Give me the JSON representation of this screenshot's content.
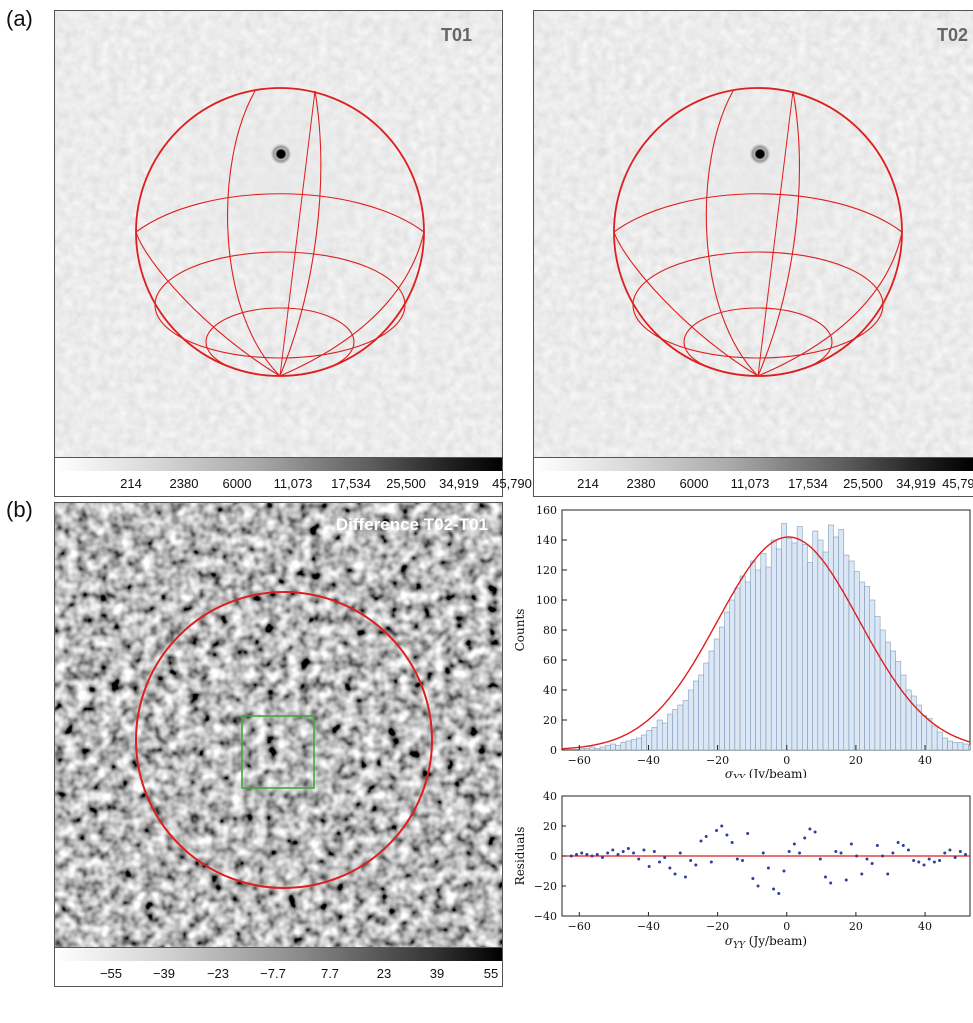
{
  "panel_labels": {
    "a": "(a)",
    "b": "(b)"
  },
  "maps": {
    "t01": {
      "title": "T01"
    },
    "t02": {
      "title": "T02"
    },
    "diff": {
      "title": "Difference T02-T01"
    }
  },
  "colorbars": {
    "intensity": [
      "214",
      "2380",
      "6000",
      "11,073",
      "17,534",
      "25,500",
      "34,919",
      "45,790"
    ],
    "difference": [
      "−55",
      "−39",
      "−23",
      "−7.7",
      "7.7",
      "23",
      "39",
      "55"
    ]
  },
  "colors": {
    "overlay_red": "#dd1f1f",
    "region_green": "#3faa3a",
    "hist_fill": "#dbe7f5",
    "hist_edge": "#6f8fb0",
    "residual_points": "#2c3f9e"
  },
  "chart_data": [
    {
      "type": "bar",
      "title": "",
      "xlabel": "σ_YY (Jy/beam)",
      "ylabel": "Counts",
      "xlim": [
        -65,
        53
      ],
      "ylim": [
        0,
        160
      ],
      "xticks": [
        -60,
        -40,
        -20,
        0,
        20,
        40
      ],
      "yticks": [
        0,
        20,
        40,
        60,
        80,
        100,
        120,
        140,
        160
      ],
      "bin_start": -63,
      "bin_width": 1.5,
      "values": [
        0,
        0,
        1,
        1,
        2,
        1,
        2,
        3,
        4,
        3,
        5,
        6,
        7,
        8,
        10,
        13,
        15,
        20,
        18,
        24,
        27,
        30,
        33,
        40,
        46,
        50,
        58,
        66,
        74,
        82,
        92,
        100,
        108,
        116,
        112,
        126,
        120,
        131,
        122,
        140,
        134,
        151,
        141,
        138,
        149,
        137,
        125,
        146,
        140,
        132,
        150,
        142,
        147,
        130,
        126,
        119,
        112,
        109,
        100,
        89,
        80,
        72,
        66,
        59,
        50,
        40,
        36,
        30,
        23,
        21,
        16,
        12,
        8,
        6,
        5,
        5,
        4,
        3,
        4
      ],
      "fit": {
        "type": "gaussian",
        "amplitude": 142,
        "mean": 0.5,
        "sigma": 20.5,
        "color": "#dd1f1f"
      },
      "grid": false
    },
    {
      "type": "scatter",
      "title": "",
      "xlabel": "σ_YY (Jy/beam)",
      "ylabel": "Residuals",
      "xlim": [
        -65,
        53
      ],
      "ylim": [
        -40,
        40
      ],
      "xticks": [
        -60,
        -40,
        -20,
        0,
        20,
        40
      ],
      "yticks": [
        -40,
        -20,
        0,
        20,
        40
      ],
      "x": [
        -62.3,
        -60.8,
        -59.3,
        -57.8,
        -56.3,
        -54.8,
        -53.3,
        -51.8,
        -50.3,
        -48.8,
        -47.3,
        -45.8,
        -44.3,
        -42.8,
        -41.3,
        -39.8,
        -38.3,
        -36.8,
        -35.3,
        -33.8,
        -32.3,
        -30.8,
        -29.3,
        -27.8,
        -26.3,
        -24.8,
        -23.3,
        -21.8,
        -20.3,
        -18.8,
        -17.3,
        -15.8,
        -14.3,
        -12.8,
        -11.3,
        -9.8,
        -8.3,
        -6.8,
        -5.3,
        -3.8,
        -2.3,
        -0.8,
        0.7,
        2.2,
        3.7,
        5.2,
        6.7,
        8.2,
        9.7,
        11.2,
        12.7,
        14.2,
        15.7,
        17.2,
        18.7,
        20.2,
        21.7,
        23.2,
        24.7,
        26.2,
        27.7,
        29.2,
        30.7,
        32.2,
        33.7,
        35.2,
        36.7,
        38.2,
        39.7,
        41.2,
        42.7,
        44.2,
        45.7,
        47.2,
        48.7,
        50.2,
        51.7
      ],
      "y": [
        0,
        1,
        2,
        1,
        0,
        1,
        -1,
        2,
        4,
        1,
        3,
        5,
        2,
        -2,
        4,
        -7,
        3,
        -4,
        -1,
        -8,
        -12,
        2,
        -14,
        -3,
        -6,
        10,
        13,
        -4,
        17,
        20,
        14,
        9,
        -2,
        -3,
        15,
        -15,
        -20,
        2,
        -8,
        -22,
        -25,
        -10,
        3,
        8,
        2,
        12,
        18,
        16,
        -2,
        -14,
        -18,
        3,
        2,
        -16,
        8,
        0,
        -12,
        -2,
        -5,
        7,
        0,
        -12,
        2,
        9,
        7,
        4,
        -3,
        -4,
        -6,
        -2,
        -4,
        -3,
        2,
        4,
        -1,
        3,
        1
      ],
      "reference_line": 0,
      "grid": false
    }
  ]
}
